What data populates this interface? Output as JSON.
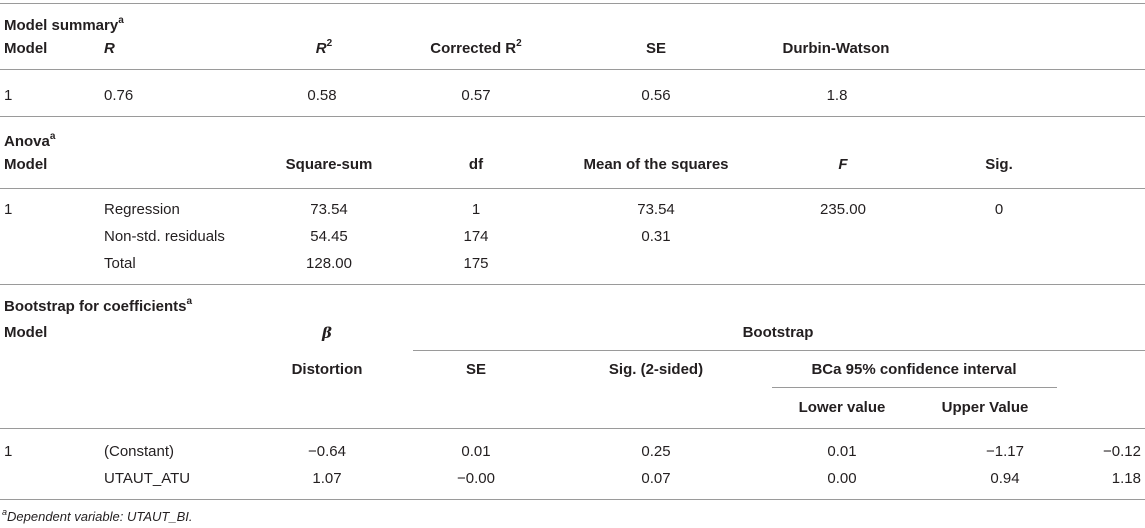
{
  "summary": {
    "title": "Model summary",
    "title_sup": "a",
    "headers": {
      "model": "Model",
      "r": "R",
      "r2": "R",
      "r2_sup": "2",
      "corrected_r2": "Corrected R",
      "corrected_r2_sup": "2",
      "se": "SE",
      "dw": "Durbin-Watson"
    },
    "row": {
      "model": "1",
      "r": "0.76",
      "r2": "0.58",
      "corrected_r2": "0.57",
      "se": "0.56",
      "dw": "1.8"
    }
  },
  "anova": {
    "title": "Anova",
    "title_sup": "a",
    "headers": {
      "model": "Model",
      "square_sum": "Square-sum",
      "df": "df",
      "mean_squares": "Mean of the squares",
      "f": "F",
      "sig": "Sig."
    },
    "model_number": "1",
    "rows": [
      {
        "label": "Regression",
        "square_sum": "73.54",
        "df": "1",
        "mean_squares": "73.54",
        "f": "235.00",
        "sig": "0"
      },
      {
        "label": "Non-std. residuals",
        "square_sum": "54.45",
        "df": "174",
        "mean_squares": "0.31"
      },
      {
        "label": "Total",
        "square_sum": "128.00",
        "df": "175"
      }
    ]
  },
  "bootstrap": {
    "title": "Bootstrap for coefficients",
    "title_sup": "a",
    "headers": {
      "model": "Model",
      "beta": "β",
      "bootstrap": "Bootstrap",
      "distortion": "Distortion",
      "se": "SE",
      "sig": "Sig. (2-sided)",
      "ci": "BCa 95% confidence interval",
      "lower": "Lower value",
      "upper": "Upper Value"
    },
    "model_number": "1",
    "rows": [
      {
        "label": "(Constant)",
        "beta": "−0.64",
        "distortion": "0.01",
        "se": "0.25",
        "sig": "0.01",
        "lower": "−1.17",
        "upper": "−0.12"
      },
      {
        "label": "UTAUT_ATU",
        "beta": "1.07",
        "distortion": "−0.00",
        "se": "0.07",
        "sig": "0.00",
        "lower": "0.94",
        "upper": "1.18"
      }
    ]
  },
  "footnote": {
    "sup": "a",
    "text": "Dependent variable: UTAUT_BI."
  }
}
